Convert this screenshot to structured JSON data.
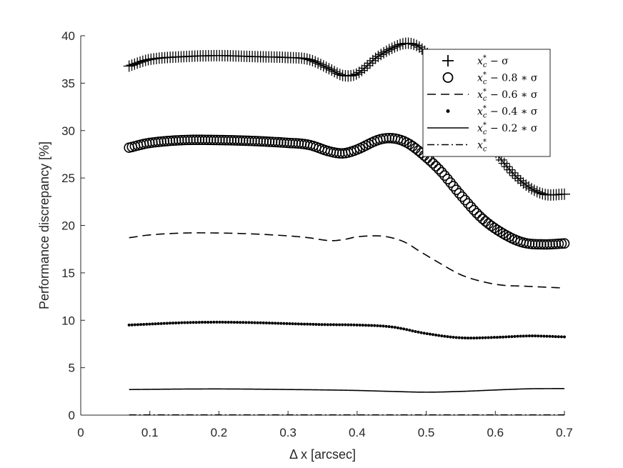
{
  "chart_data": {
    "type": "line",
    "title": "",
    "xlabel": "Δ x [arcsec]",
    "ylabel": "Performance discrepancy [%]",
    "xlim": [
      0,
      0.7
    ],
    "ylim": [
      0,
      40
    ],
    "xticks": [
      0,
      0.1,
      0.2,
      0.3,
      0.4,
      0.5,
      0.6,
      0.7
    ],
    "xtick_labels": [
      "0",
      "0.1",
      "0.2",
      "0.3",
      "0.4",
      "0.5",
      "0.6",
      "0.7"
    ],
    "yticks": [
      0,
      5,
      10,
      15,
      20,
      25,
      30,
      35,
      40
    ],
    "ytick_labels": [
      "0",
      "5",
      "10",
      "15",
      "20",
      "25",
      "30",
      "35",
      "40"
    ],
    "grid": false,
    "legend_position": "top-right",
    "series": [
      {
        "name": "x_c^* − σ",
        "legend_main": "x",
        "legend_sub": "c",
        "legend_sup": "*",
        "legend_rest": " − σ",
        "marker": "plus",
        "x": [
          0.07,
          0.1,
          0.15,
          0.2,
          0.25,
          0.3,
          0.33,
          0.36,
          0.38,
          0.4,
          0.43,
          0.46,
          0.475,
          0.49,
          0.52,
          0.55,
          0.58,
          0.61,
          0.64,
          0.67,
          0.7
        ],
        "y": [
          36.8,
          37.5,
          37.8,
          37.9,
          37.8,
          37.7,
          37.5,
          36.5,
          35.8,
          36.0,
          37.8,
          39.0,
          39.2,
          38.8,
          36.8,
          33.5,
          30.0,
          26.8,
          24.5,
          23.3,
          23.3
        ]
      },
      {
        "name": "x_c^* − 0.8 ∗ σ",
        "legend_main": "x",
        "legend_sub": "c",
        "legend_sup": "*",
        "legend_rest": " − 0.8 ∗ σ",
        "marker": "circle",
        "x": [
          0.07,
          0.1,
          0.15,
          0.2,
          0.25,
          0.3,
          0.33,
          0.36,
          0.38,
          0.4,
          0.43,
          0.45,
          0.47,
          0.49,
          0.52,
          0.55,
          0.58,
          0.61,
          0.64,
          0.67,
          0.7
        ],
        "y": [
          28.2,
          28.7,
          29.0,
          29.0,
          28.9,
          28.7,
          28.5,
          27.8,
          27.6,
          28.0,
          29.0,
          29.2,
          28.8,
          27.8,
          25.8,
          23.2,
          20.8,
          19.2,
          18.2,
          18.0,
          18.1
        ]
      },
      {
        "name": "x_c^* − 0.6 ∗ σ",
        "legend_main": "x",
        "legend_sub": "c",
        "legend_sup": "*",
        "legend_rest": " − 0.6 ∗ σ",
        "marker": "dashed",
        "x": [
          0.07,
          0.1,
          0.15,
          0.2,
          0.25,
          0.3,
          0.33,
          0.36,
          0.38,
          0.4,
          0.43,
          0.45,
          0.47,
          0.49,
          0.52,
          0.55,
          0.58,
          0.61,
          0.64,
          0.67,
          0.7
        ],
        "y": [
          18.7,
          19.0,
          19.2,
          19.2,
          19.1,
          18.9,
          18.7,
          18.4,
          18.5,
          18.8,
          18.9,
          18.7,
          18.2,
          17.3,
          16.0,
          14.8,
          14.1,
          13.7,
          13.6,
          13.5,
          13.4
        ]
      },
      {
        "name": "x_c^* − 0.4 ∗ σ",
        "legend_main": "x",
        "legend_sub": "c",
        "legend_sup": "*",
        "legend_rest": " − 0.4 ∗ σ",
        "marker": "dot",
        "x": [
          0.07,
          0.1,
          0.15,
          0.2,
          0.25,
          0.3,
          0.35,
          0.4,
          0.45,
          0.5,
          0.55,
          0.6,
          0.65,
          0.7
        ],
        "y": [
          9.5,
          9.6,
          9.75,
          9.8,
          9.75,
          9.65,
          9.55,
          9.5,
          9.3,
          8.6,
          8.15,
          8.2,
          8.35,
          8.25
        ]
      },
      {
        "name": "x_c^* − 0.2 ∗ σ",
        "legend_main": "x",
        "legend_sub": "c",
        "legend_sup": "*",
        "legend_rest": " − 0.2 ∗ σ",
        "marker": "solid",
        "x": [
          0.07,
          0.1,
          0.15,
          0.2,
          0.25,
          0.3,
          0.35,
          0.4,
          0.45,
          0.5,
          0.55,
          0.6,
          0.65,
          0.7
        ],
        "y": [
          2.7,
          2.72,
          2.75,
          2.76,
          2.74,
          2.7,
          2.66,
          2.6,
          2.5,
          2.42,
          2.5,
          2.65,
          2.78,
          2.8
        ]
      },
      {
        "name": "x_c^*",
        "legend_main": "x",
        "legend_sub": "c",
        "legend_sup": "*",
        "legend_rest": "",
        "marker": "dashdot",
        "x": [
          0.07,
          0.7
        ],
        "y": [
          0.02,
          0.02
        ]
      }
    ]
  }
}
